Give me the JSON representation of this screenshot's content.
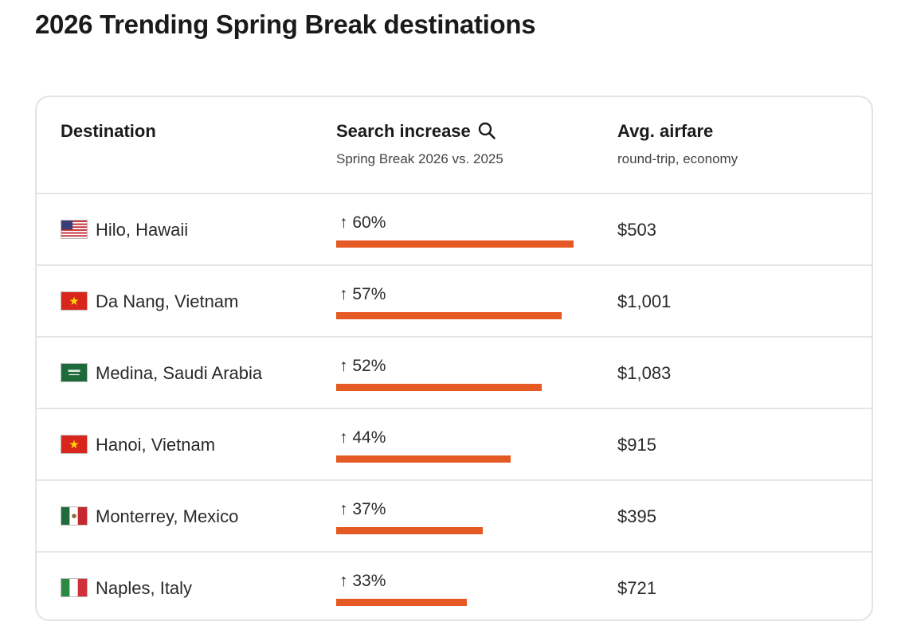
{
  "page": {
    "title": "2026 Trending Spring Break destinations"
  },
  "table": {
    "headers": {
      "destination": "Destination",
      "search": "Search increase",
      "search_sub": "Spring Break 2026 vs. 2025",
      "fare": "Avg. airfare",
      "fare_sub": "round-trip, economy"
    },
    "rows": [
      {
        "flag": "us-flag-icon",
        "destination": "Hilo, Hawaii",
        "increase_label": "↑ 60%",
        "fare": "$503"
      },
      {
        "flag": "vietnam-flag-icon",
        "destination": "Da Nang, Vietnam",
        "increase_label": "↑ 57%",
        "fare": "$1,001"
      },
      {
        "flag": "saudi-arabia-flag-icon",
        "destination": "Medina, Saudi Arabia",
        "increase_label": "↑ 52%",
        "fare": "$1,083"
      },
      {
        "flag": "vietnam-flag-icon",
        "destination": "Hanoi, Vietnam",
        "increase_label": "↑ 44%",
        "fare": "$915"
      },
      {
        "flag": "mexico-flag-icon",
        "destination": "Monterrey, Mexico",
        "increase_label": "↑ 37%",
        "fare": "$395"
      },
      {
        "flag": "italy-flag-icon",
        "destination": "Naples, Italy",
        "increase_label": "↑ 33%",
        "fare": "$721"
      }
    ]
  },
  "chart_data": {
    "type": "bar",
    "orientation": "horizontal",
    "categories": [
      "Hilo, Hawaii",
      "Da Nang, Vietnam",
      "Medina, Saudi Arabia",
      "Hanoi, Vietnam",
      "Monterrey, Mexico",
      "Naples, Italy"
    ],
    "values": [
      60,
      57,
      52,
      44,
      37,
      33
    ],
    "unit": "%",
    "xlim": [
      0,
      60
    ]
  },
  "colors": {
    "bar": "#e55a24",
    "border": "#e3e3e3"
  }
}
